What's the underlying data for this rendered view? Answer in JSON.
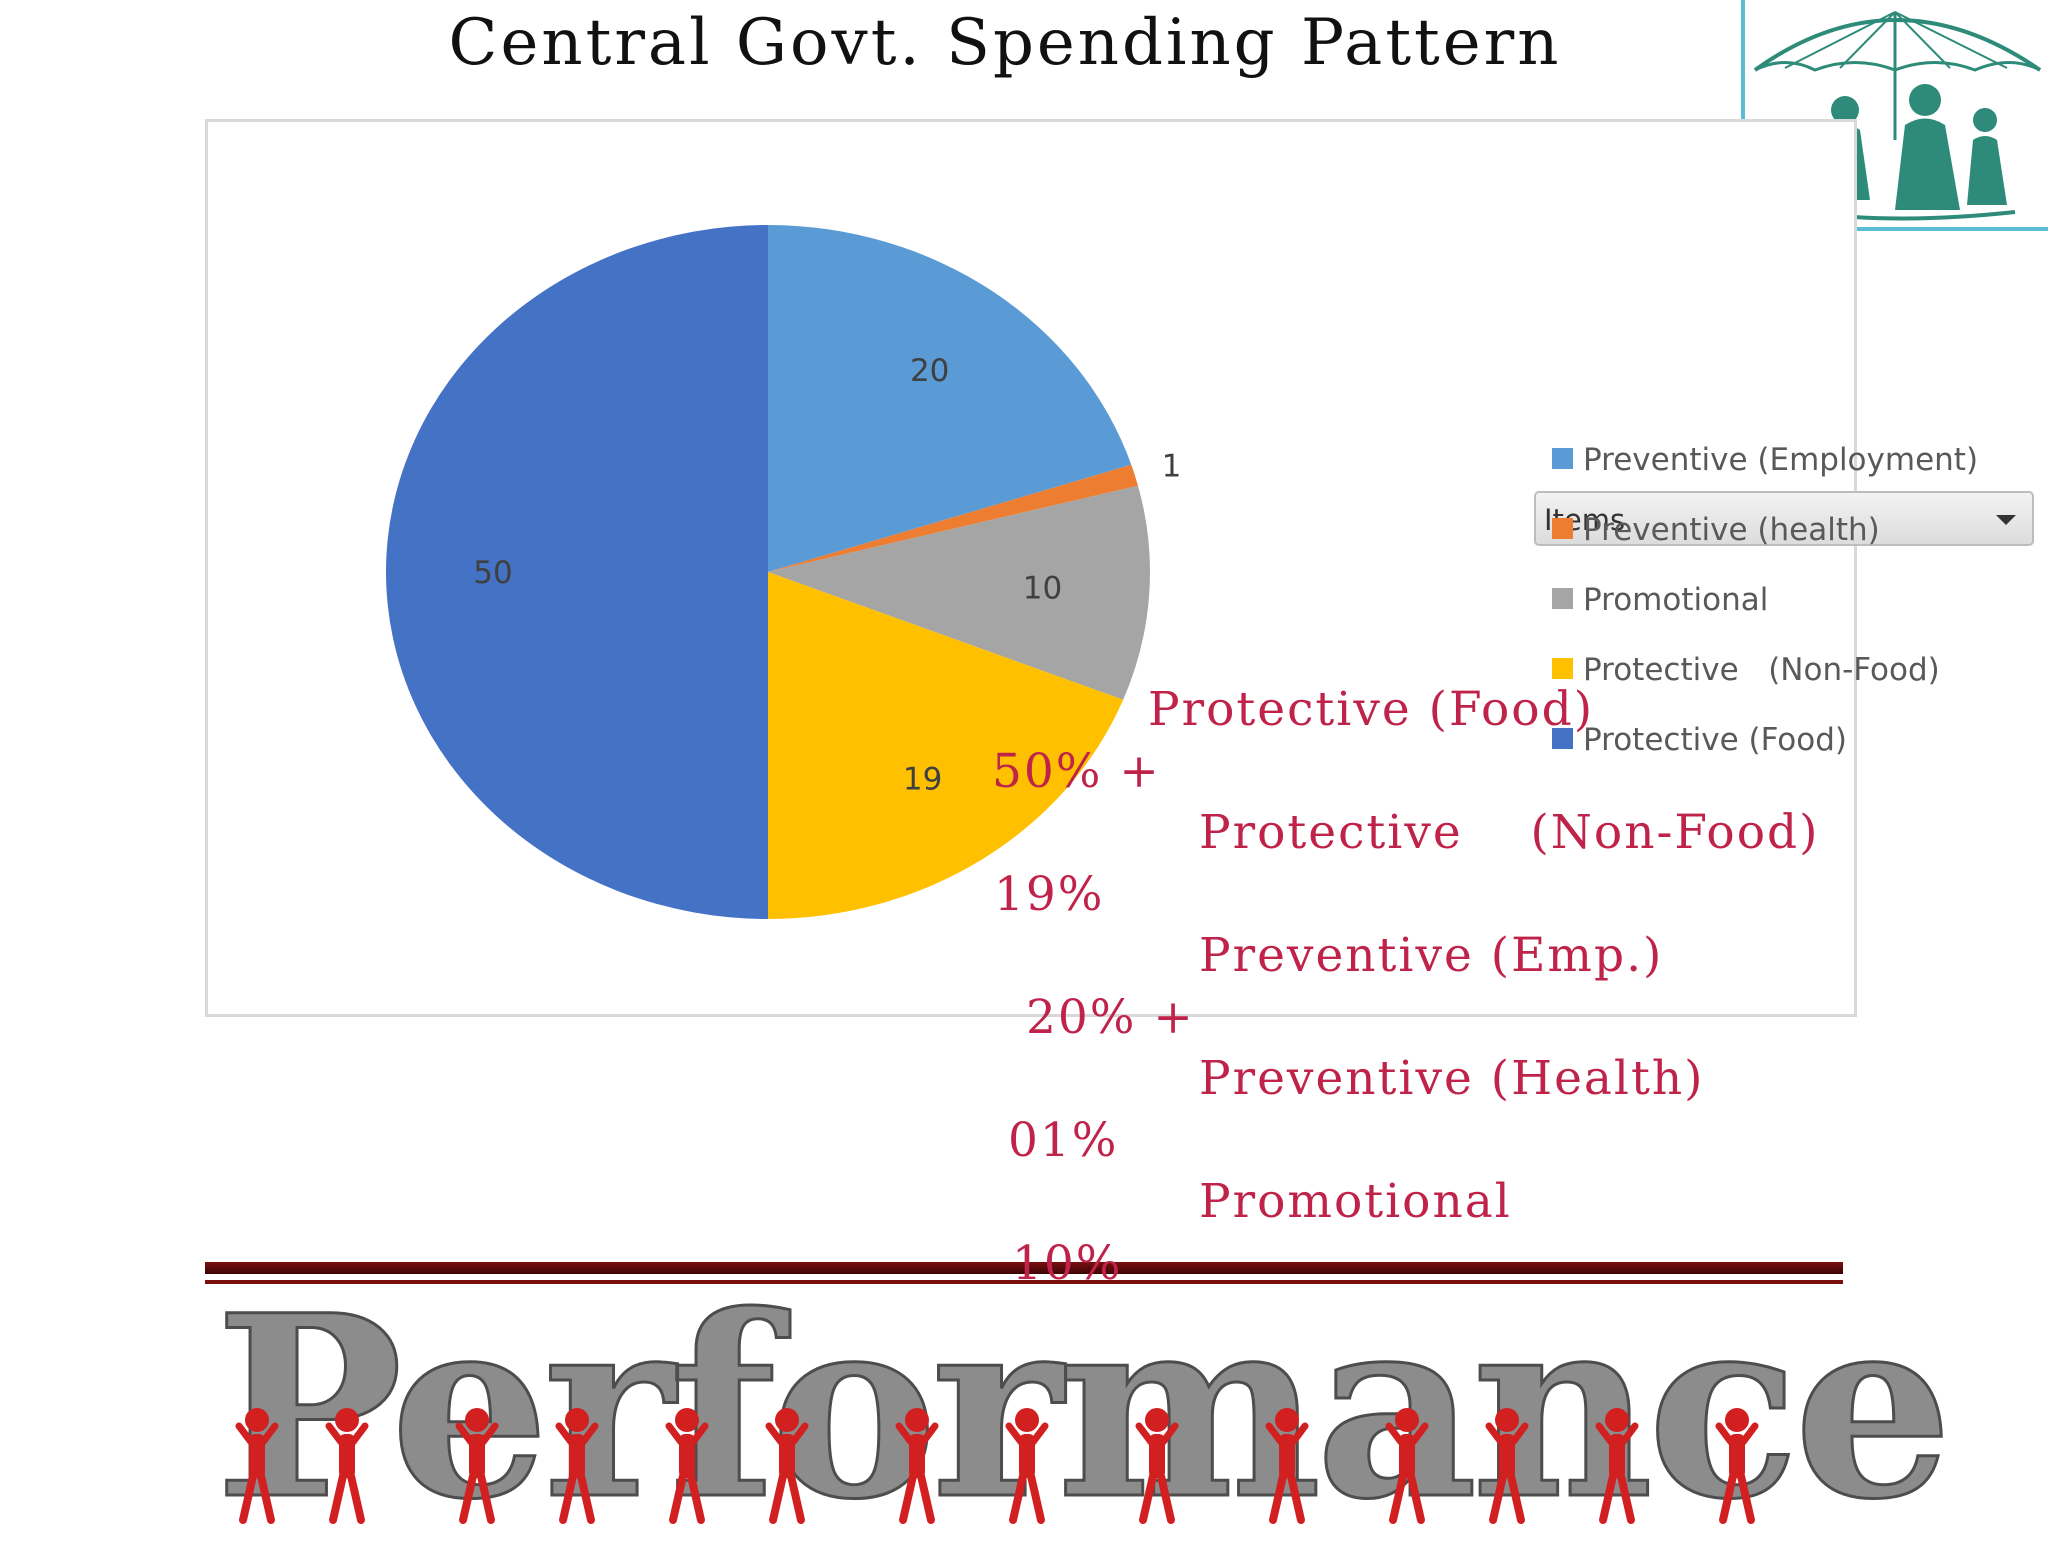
{
  "slide_title": "Central Govt. Spending Pattern",
  "chart_data": {
    "type": "pie",
    "title": "",
    "legend_placement": "right",
    "legend_header": "Items",
    "slices": [
      {
        "name": "Preventive (Employment)",
        "value": 20,
        "label": "20",
        "color": "#5b9bd5"
      },
      {
        "name": "Preventive (health)",
        "value": 1,
        "label": "1",
        "color": "#ed7d31"
      },
      {
        "name": "Promotional",
        "value": 10,
        "label": "10",
        "color": "#a5a5a5"
      },
      {
        "name": "Protective   (Non-Food)",
        "value": 19,
        "label": "19",
        "color": "#ffc000"
      },
      {
        "name": "Protective (Food)",
        "value": 50,
        "label": "50",
        "color": "#4472c4"
      }
    ]
  },
  "annotations": [
    {
      "name": "Protective (Food)",
      "percent": "50% +"
    },
    {
      "name": "Protective    (Non-Food)",
      "percent": "19%"
    },
    {
      "name": "Preventive (Emp.)",
      "percent": "20% +"
    },
    {
      "name": "Preventive (Health)",
      "percent": "01%"
    },
    {
      "name": "Promotional",
      "percent": "10%"
    }
  ],
  "banner_text": "Performance",
  "colors": {
    "annotation": "#c0234a",
    "rule": "#7a0f0f",
    "logo_border": "#5bbcd6",
    "logo_ink": "#2e8b7a"
  },
  "logo_icon": "umbrella-family-logo-icon"
}
